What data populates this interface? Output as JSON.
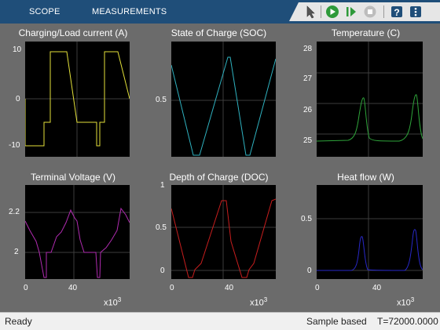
{
  "toolstrip": {
    "tabs": [
      "SCOPE",
      "MEASUREMENTS"
    ],
    "icons": [
      "pointer-icon",
      "run-icon",
      "step-forward-icon",
      "stop-icon",
      "help-icon",
      "menu-icon"
    ]
  },
  "colors": {
    "toolstrip_bg": "#1f4e79",
    "panel_bg": "#6b6b6b",
    "plot_bg": "#000000",
    "trace_current": "#e3e13a",
    "trace_soc": "#2fb2c0",
    "trace_temp": "#2ea33a",
    "trace_voltage": "#b02bb0",
    "trace_doc": "#c81e1e",
    "trace_heat": "#2828c8"
  },
  "plots": [
    {
      "title": "Charging/Load current (A)",
      "yticks": [
        "10",
        "0",
        "-10"
      ],
      "xticks": [],
      "xexp": ""
    },
    {
      "title": "State of Charge (SOC)",
      "yticks": [
        "0.5"
      ],
      "xticks": [],
      "xexp": ""
    },
    {
      "title": "Temperature (C)",
      "yticks": [
        "28",
        "27",
        "26",
        "25"
      ],
      "xticks": [],
      "xexp": ""
    },
    {
      "title": "Terminal Voltage (V)",
      "yticks": [
        "2.2",
        "2"
      ],
      "xticks": [
        "0",
        "40"
      ],
      "xexp": "x10"
    },
    {
      "title": "Depth of Charge (DOC)",
      "yticks": [
        "1",
        "0.5",
        "0"
      ],
      "xticks": [
        "0",
        "40"
      ],
      "xexp": "x10"
    },
    {
      "title": "Heat flow (W)",
      "yticks": [
        "0.5",
        "0"
      ],
      "xticks": [
        "0",
        "40"
      ],
      "xexp": "x10"
    }
  ],
  "exponent": "3",
  "status": {
    "left": "Ready",
    "mode": "Sample based",
    "time": "T=72000.0000"
  }
}
